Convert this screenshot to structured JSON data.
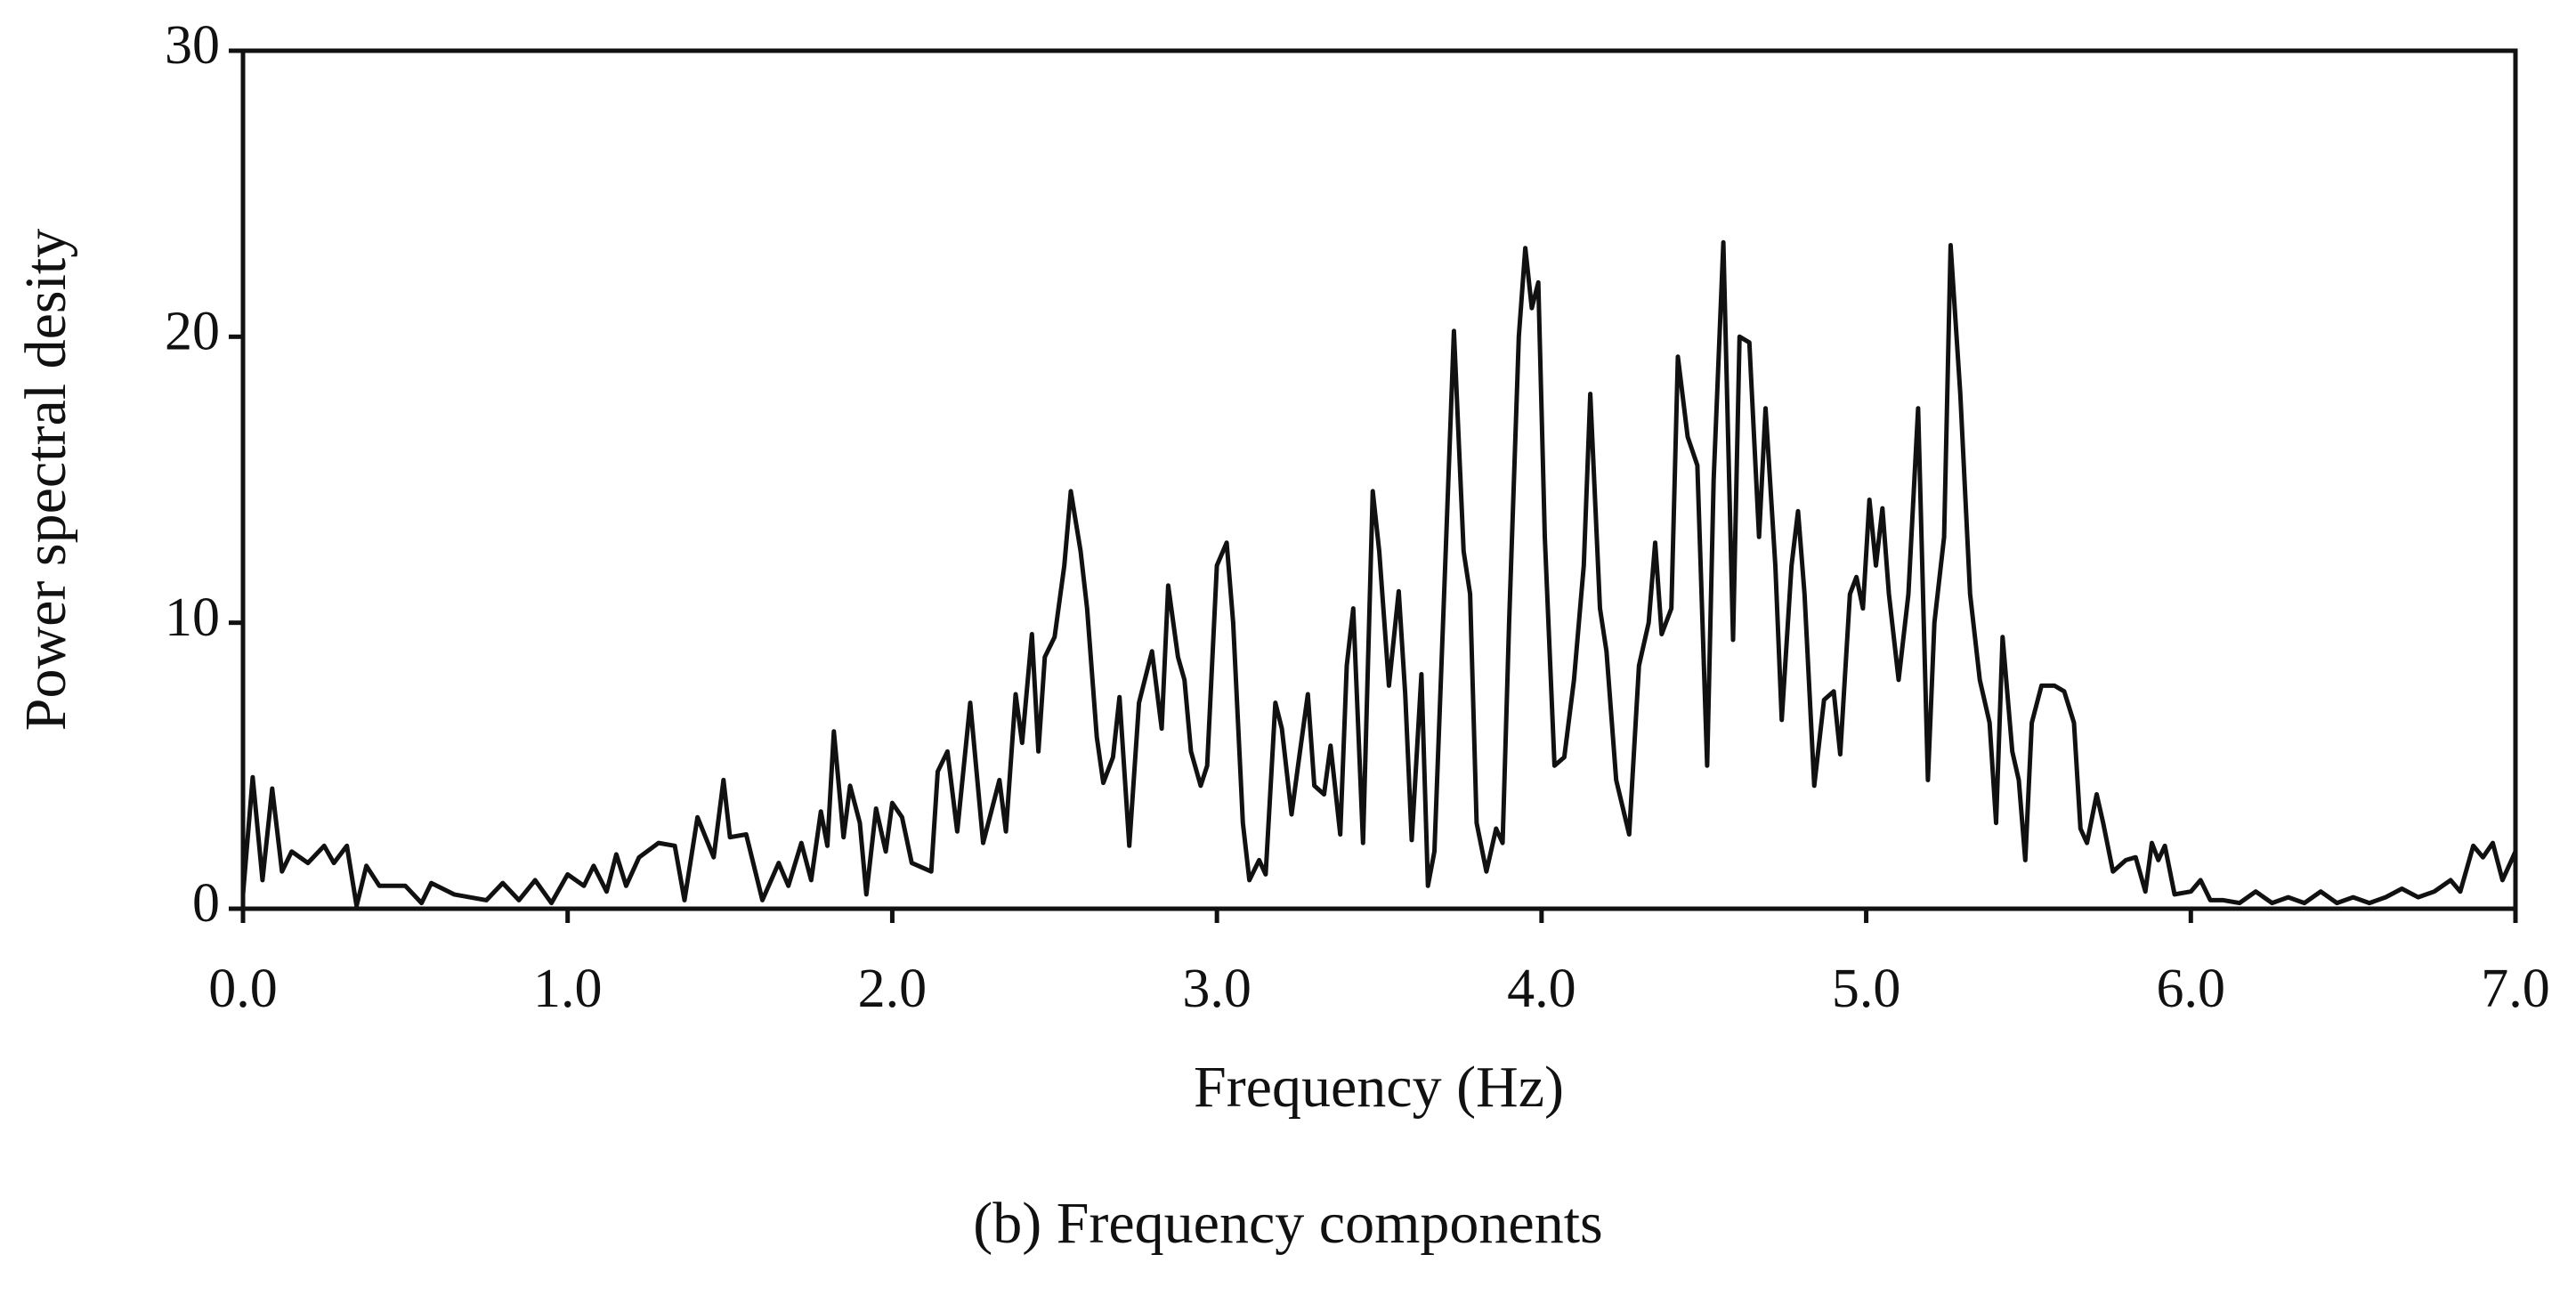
{
  "chart_data": {
    "type": "line",
    "caption": "(b) Frequency components",
    "xlabel": "Frequency (Hz)",
    "ylabel": "Power spectral desity",
    "color": "#111111",
    "xlim": [
      0,
      7
    ],
    "ylim": [
      0,
      30
    ],
    "xticks": [
      {
        "value": 0,
        "label": "0.0"
      },
      {
        "value": 1,
        "label": "1.0"
      },
      {
        "value": 2,
        "label": "2.0"
      },
      {
        "value": 3,
        "label": "3.0"
      },
      {
        "value": 4,
        "label": "4.0"
      },
      {
        "value": 5,
        "label": "5.0"
      },
      {
        "value": 6,
        "label": "6.0"
      },
      {
        "value": 7,
        "label": "7.0"
      }
    ],
    "yticks": [
      0,
      10,
      20,
      30
    ],
    "x": [
      0.0,
      0.03,
      0.06,
      0.09,
      0.12,
      0.15,
      0.2,
      0.25,
      0.28,
      0.32,
      0.35,
      0.38,
      0.42,
      0.5,
      0.55,
      0.58,
      0.65,
      0.75,
      0.8,
      0.85,
      0.9,
      0.95,
      1.0,
      1.05,
      1.08,
      1.12,
      1.15,
      1.18,
      1.22,
      1.28,
      1.33,
      1.36,
      1.4,
      1.45,
      1.48,
      1.5,
      1.55,
      1.6,
      1.65,
      1.68,
      1.72,
      1.75,
      1.78,
      1.8,
      1.82,
      1.85,
      1.87,
      1.9,
      1.92,
      1.95,
      1.98,
      2.0,
      2.03,
      2.06,
      2.12,
      2.14,
      2.17,
      2.2,
      2.24,
      2.28,
      2.33,
      2.35,
      2.38,
      2.4,
      2.43,
      2.45,
      2.47,
      2.5,
      2.53,
      2.55,
      2.58,
      2.6,
      2.63,
      2.65,
      2.68,
      2.7,
      2.73,
      2.76,
      2.8,
      2.83,
      2.85,
      2.88,
      2.9,
      2.92,
      2.95,
      2.97,
      3.0,
      3.03,
      3.05,
      3.08,
      3.1,
      3.13,
      3.15,
      3.18,
      3.2,
      3.23,
      3.25,
      3.28,
      3.3,
      3.33,
      3.35,
      3.38,
      3.4,
      3.42,
      3.45,
      3.48,
      3.5,
      3.53,
      3.56,
      3.58,
      3.6,
      3.63,
      3.65,
      3.67,
      3.7,
      3.73,
      3.76,
      3.78,
      3.8,
      3.83,
      3.86,
      3.88,
      3.9,
      3.93,
      3.95,
      3.97,
      3.99,
      4.01,
      4.04,
      4.07,
      4.1,
      4.13,
      4.15,
      4.18,
      4.2,
      4.23,
      4.27,
      4.3,
      4.33,
      4.35,
      4.37,
      4.4,
      4.42,
      4.45,
      4.48,
      4.51,
      4.53,
      4.56,
      4.59,
      4.61,
      4.64,
      4.67,
      4.69,
      4.72,
      4.74,
      4.77,
      4.79,
      4.81,
      4.84,
      4.87,
      4.9,
      4.92,
      4.95,
      4.97,
      4.99,
      5.01,
      5.03,
      5.05,
      5.07,
      5.1,
      5.13,
      5.16,
      5.19,
      5.21,
      5.24,
      5.26,
      5.29,
      5.32,
      5.35,
      5.38,
      5.4,
      5.42,
      5.45,
      5.47,
      5.49,
      5.51,
      5.54,
      5.58,
      5.61,
      5.64,
      5.66,
      5.68,
      5.71,
      5.73,
      5.76,
      5.8,
      5.83,
      5.86,
      5.88,
      5.9,
      5.92,
      5.95,
      6.0,
      6.03,
      6.06,
      6.1,
      6.15,
      6.2,
      6.25,
      6.3,
      6.35,
      6.4,
      6.45,
      6.5,
      6.55,
      6.6,
      6.65,
      6.7,
      6.75,
      6.8,
      6.83,
      6.87,
      6.9,
      6.93,
      6.96,
      7.0
    ],
    "values": [
      0.5,
      4.6,
      1.0,
      4.2,
      1.3,
      2.0,
      1.6,
      2.2,
      1.6,
      2.2,
      0.1,
      1.5,
      0.8,
      0.8,
      0.2,
      0.9,
      0.5,
      0.3,
      0.9,
      0.3,
      1.0,
      0.2,
      1.2,
      0.8,
      1.5,
      0.6,
      1.9,
      0.8,
      1.8,
      2.3,
      2.2,
      0.3,
      3.2,
      1.8,
      4.5,
      2.5,
      2.6,
      0.3,
      1.6,
      0.8,
      2.3,
      1.0,
      3.4,
      2.2,
      6.2,
      2.5,
      4.3,
      3.0,
      0.5,
      3.5,
      2.0,
      3.7,
      3.2,
      1.6,
      1.3,
      4.8,
      5.5,
      2.7,
      7.2,
      2.3,
      4.5,
      2.7,
      7.5,
      5.8,
      9.6,
      5.5,
      8.8,
      9.5,
      12.0,
      14.6,
      12.5,
      10.5,
      6.0,
      4.4,
      5.3,
      7.4,
      2.2,
      7.2,
      9.0,
      6.3,
      11.3,
      8.8,
      8.0,
      5.5,
      4.3,
      5.0,
      12.0,
      12.8,
      10.0,
      3.0,
      1.0,
      1.7,
      1.2,
      7.2,
      6.3,
      3.3,
      5.0,
      7.5,
      4.3,
      4.0,
      5.7,
      2.6,
      8.5,
      10.5,
      2.3,
      14.6,
      12.5,
      7.8,
      11.1,
      7.5,
      2.4,
      8.2,
      0.8,
      2.0,
      11.0,
      20.2,
      12.5,
      11.0,
      3.0,
      1.3,
      2.8,
      2.3,
      10.0,
      20.0,
      23.1,
      21.0,
      21.9,
      13.0,
      5.0,
      5.3,
      8.0,
      12.0,
      18.0,
      10.5,
      9.0,
      4.5,
      2.6,
      8.5,
      10.0,
      12.8,
      9.6,
      10.5,
      19.3,
      16.5,
      15.5,
      5.0,
      15.0,
      23.3,
      9.4,
      20.0,
      19.8,
      13.0,
      17.5,
      12.0,
      6.6,
      12.0,
      13.9,
      11.0,
      4.3,
      7.3,
      7.6,
      5.4,
      11.0,
      11.6,
      10.5,
      14.3,
      12.0,
      14.0,
      11.0,
      8.0,
      11.0,
      17.5,
      4.5,
      10.0,
      13.0,
      23.2,
      18.0,
      11.0,
      8.0,
      6.5,
      3.0,
      9.5,
      5.5,
      4.5,
      1.7,
      6.5,
      7.8,
      7.8,
      7.6,
      6.5,
      2.8,
      2.3,
      4.0,
      3.0,
      1.3,
      1.7,
      1.8,
      0.6,
      2.3,
      1.7,
      2.2,
      0.5,
      0.6,
      1.0,
      0.3,
      0.3,
      0.2,
      0.6,
      0.2,
      0.4,
      0.2,
      0.6,
      0.2,
      0.4,
      0.2,
      0.4,
      0.7,
      0.4,
      0.6,
      1.0,
      0.6,
      2.2,
      1.8,
      2.3,
      1.0,
      2.0
    ]
  }
}
